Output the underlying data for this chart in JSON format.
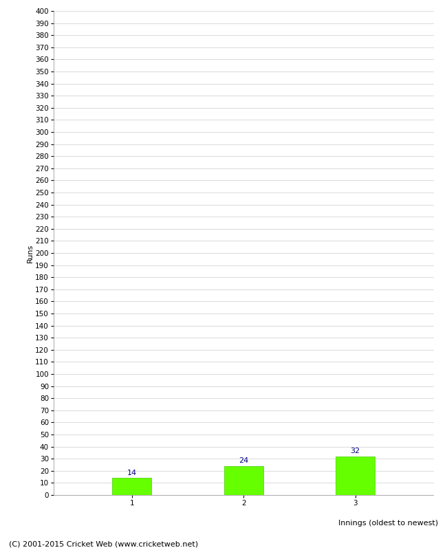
{
  "categories": [
    "1",
    "2",
    "3"
  ],
  "values": [
    14,
    24,
    32
  ],
  "bar_color": "#66ff00",
  "bar_edge_color": "#44cc00",
  "label_color": "#000080",
  "xlabel": "Innings (oldest to newest)",
  "ylabel": "Runs",
  "ylim": [
    0,
    400
  ],
  "background_color": "#ffffff",
  "grid_color": "#cccccc",
  "footer": "(C) 2001-2015 Cricket Web (www.cricketweb.net)",
  "tick_fontsize": 7.5,
  "axis_label_fontsize": 8,
  "bar_label_fontsize": 8,
  "footer_fontsize": 8
}
